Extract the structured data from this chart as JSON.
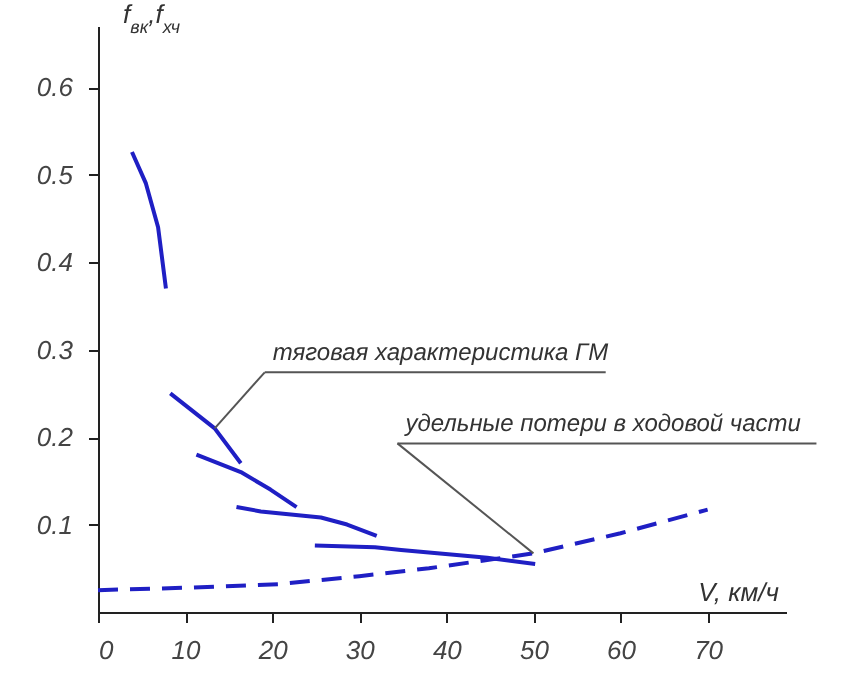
{
  "chart_data": {
    "type": "line",
    "xlabel": "V, км/ч",
    "ylabel": "f$_{вк}$,f$_{хч}$",
    "xlim": [
      0,
      79
    ],
    "ylim": [
      0,
      0.67
    ],
    "xticks": [
      0,
      10,
      20,
      30,
      40,
      50,
      60,
      70
    ],
    "yticks": [
      0.1,
      0.2,
      0.3,
      0.4,
      0.5,
      0.6
    ],
    "grid": false,
    "marker": "none",
    "series": [
      {
        "color": "#1f1fc4",
        "line_style": "solid",
        "x": [
          3.9,
          5.5,
          6.9,
          7.8
        ],
        "values": [
          0.526,
          0.49,
          0.44,
          0.37
        ]
      },
      {
        "color": "#1f1fc4",
        "line_style": "solid",
        "x": [
          8.3,
          13.4,
          16.4
        ],
        "values": [
          0.25,
          0.21,
          0.17
        ]
      },
      {
        "color": "#1f1fc4",
        "line_style": "solid",
        "x": [
          11.3,
          16.4,
          19.8,
          22.8
        ],
        "values": [
          0.18,
          0.16,
          0.14,
          0.12
        ]
      },
      {
        "color": "#1f1fc4",
        "line_style": "solid",
        "x": [
          15.9,
          18.7,
          25.6,
          28.6,
          32
        ],
        "values": [
          0.12,
          0.115,
          0.108,
          0.1,
          0.087
        ]
      },
      {
        "color": "#1f1fc4",
        "line_style": "solid",
        "x": [
          24.9,
          31.8,
          34.8,
          44.7,
          50.2
        ],
        "values": [
          0.076,
          0.074,
          0.071,
          0.062,
          0.055
        ]
      },
      {
        "color": "#1f1fc4",
        "line_style": "dashed",
        "x": [
          0,
          11,
          21,
          30,
          38,
          50,
          60,
          70
        ],
        "values": [
          0.025,
          0.028,
          0.032,
          0.041,
          0.05,
          0.067,
          0.09,
          0.117
        ]
      }
    ],
    "annotations": [
      {
        "text": "тяговая характеристика ГМ",
        "x": 13.4,
        "y": 0.21
      },
      {
        "text": "удельные потери в ходовой части",
        "x": 50,
        "y": 0.067
      }
    ]
  }
}
